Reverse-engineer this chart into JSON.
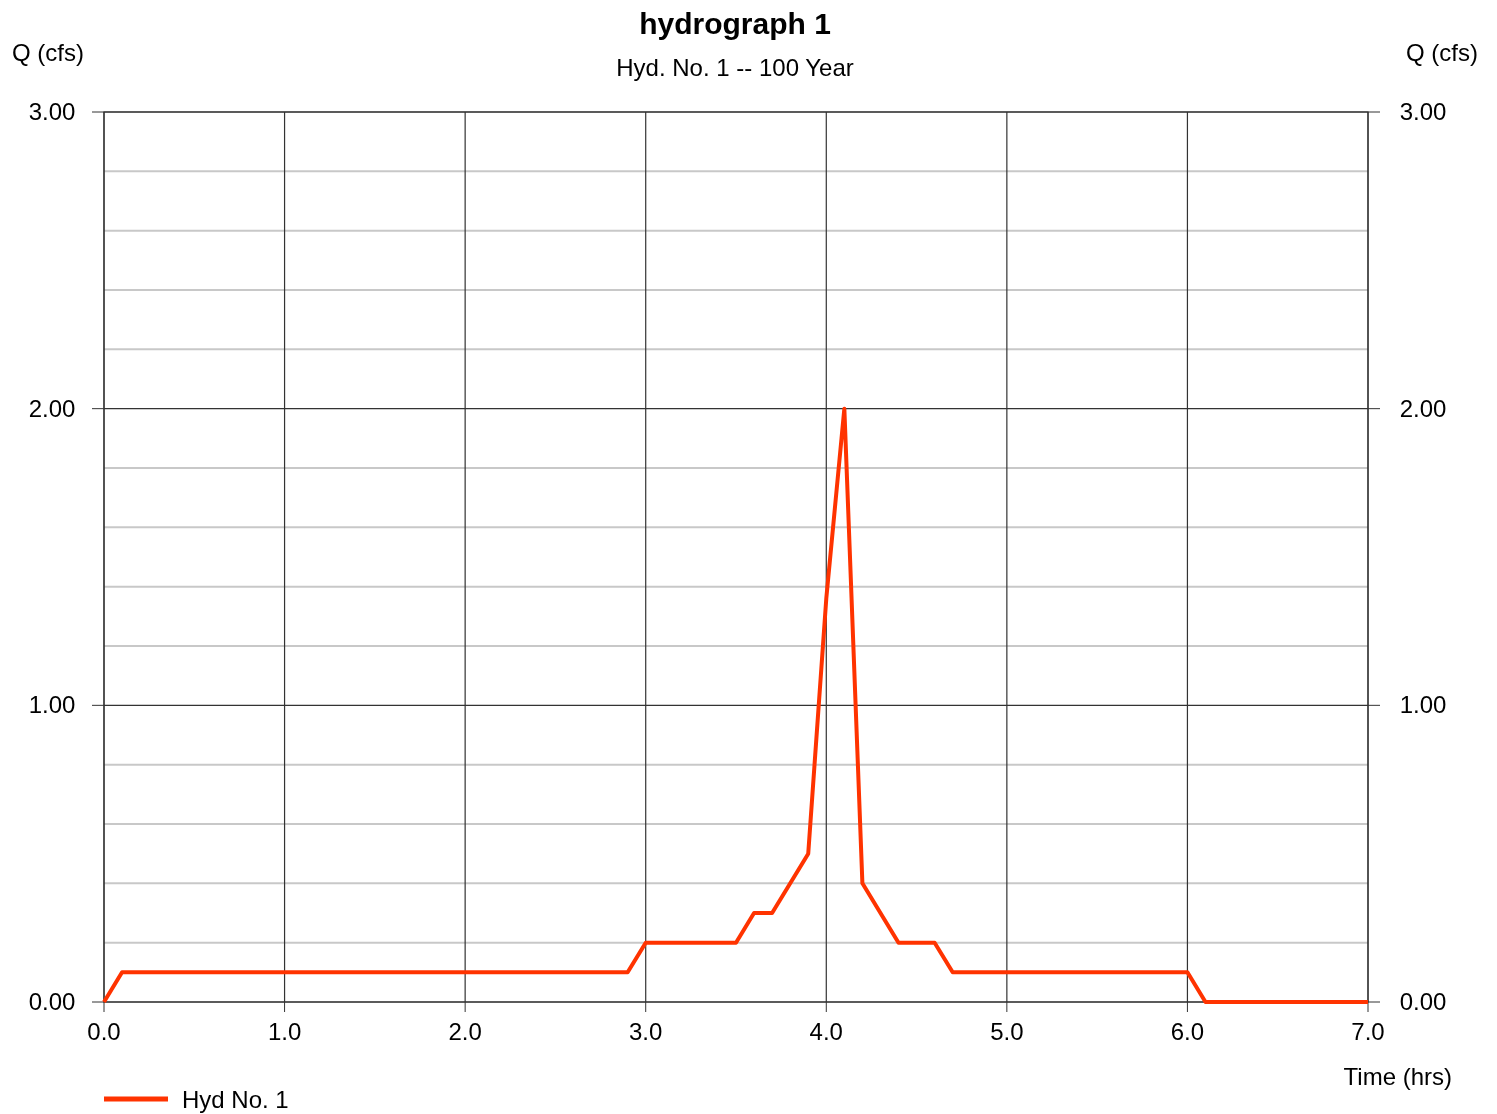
{
  "chart_data": {
    "type": "line",
    "title": "hydrograph 1",
    "subtitle": "Hyd. No. 1 -- 100 Year",
    "xlabel": "Time (hrs)",
    "ylabel": "Q (cfs)",
    "y2label": "Q (cfs)",
    "x": [
      0,
      0.1,
      2.9,
      3.0,
      3.5,
      3.6,
      3.7,
      3.9,
      4.0,
      4.1,
      4.2,
      4.4,
      4.6,
      4.7,
      6.0,
      6.1,
      7.0
    ],
    "series": [
      {
        "name": "Hyd No. 1",
        "color": "#ff3300",
        "values": [
          0,
          0.1,
          0.1,
          0.2,
          0.2,
          0.3,
          0.3,
          0.5,
          1.36,
          2.0,
          0.4,
          0.2,
          0.2,
          0.1,
          0.1,
          0,
          0
        ]
      }
    ],
    "xlim": [
      0,
      7
    ],
    "xticks": [
      {
        "value": 0,
        "label": "0.0"
      },
      {
        "value": 1,
        "label": "1.0"
      },
      {
        "value": 2,
        "label": "2.0"
      },
      {
        "value": 3,
        "label": "3.0"
      },
      {
        "value": 4,
        "label": "4.0"
      },
      {
        "value": 5,
        "label": "5.0"
      },
      {
        "value": 6,
        "label": "6.0"
      },
      {
        "value": 7,
        "label": "7.0"
      }
    ],
    "ylim": [
      0,
      3
    ],
    "yticks": [
      {
        "value": 0,
        "label": "0.00"
      },
      {
        "value": 0.2,
        "label": null
      },
      {
        "value": 0.4,
        "label": null
      },
      {
        "value": 0.6,
        "label": null
      },
      {
        "value": 0.8,
        "label": null
      },
      {
        "value": 1,
        "label": "1.00"
      },
      {
        "value": 1.2,
        "label": null
      },
      {
        "value": 1.4,
        "label": null
      },
      {
        "value": 1.6,
        "label": null
      },
      {
        "value": 1.8,
        "label": null
      },
      {
        "value": 2,
        "label": "2.00"
      },
      {
        "value": 2.2,
        "label": null
      },
      {
        "value": 2.4,
        "label": null
      },
      {
        "value": 2.6,
        "label": null
      },
      {
        "value": 2.8,
        "label": null
      },
      {
        "value": 3,
        "label": "3.00"
      }
    ],
    "y2lim": [
      0,
      3
    ],
    "y2ticks": [
      {
        "value": 0,
        "label": "0.00"
      },
      {
        "value": 1,
        "label": "1.00"
      },
      {
        "value": 2,
        "label": "2.00"
      },
      {
        "value": 3,
        "label": "3.00"
      }
    ],
    "grid": true,
    "legend": "bottom left",
    "marker": "none",
    "line_style": "solid"
  }
}
